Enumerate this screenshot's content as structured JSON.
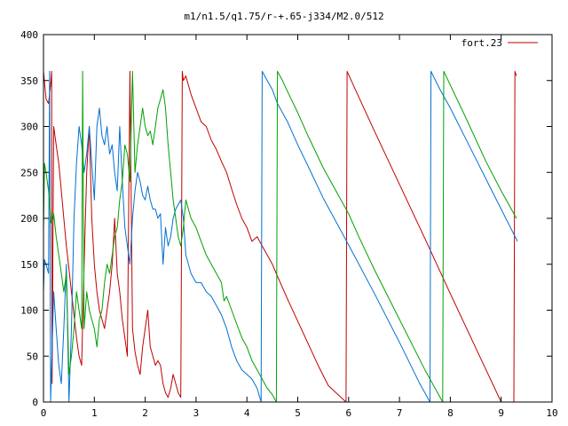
{
  "chart_data": {
    "type": "line",
    "title": "m1/n1.5/q1.75/r-+.65-j334/M2.0/512",
    "xlabel": "",
    "ylabel": "",
    "xlim": [
      0,
      10
    ],
    "ylim": [
      0,
      400
    ],
    "x_ticks": [
      0,
      1,
      2,
      3,
      4,
      5,
      6,
      7,
      8,
      9,
      10
    ],
    "y_ticks": [
      0,
      50,
      100,
      150,
      200,
      250,
      300,
      350,
      400
    ],
    "grid": false,
    "legend": {
      "position": "top-right",
      "entries": [
        "fort.23"
      ]
    },
    "series": [
      {
        "name": "fort.23",
        "color": "#c00000",
        "points": [
          [
            0.0,
            360
          ],
          [
            0.05,
            330
          ],
          [
            0.1,
            325
          ],
          [
            0.14,
            345
          ],
          [
            0.16,
            360
          ],
          [
            0.17,
            20
          ],
          [
            0.2,
            300
          ],
          [
            0.25,
            280
          ],
          [
            0.3,
            260
          ],
          [
            0.35,
            230
          ],
          [
            0.4,
            200
          ],
          [
            0.45,
            170
          ],
          [
            0.5,
            145
          ],
          [
            0.55,
            120
          ],
          [
            0.6,
            95
          ],
          [
            0.65,
            70
          ],
          [
            0.7,
            50
          ],
          [
            0.75,
            40
          ],
          [
            0.8,
            150
          ],
          [
            0.85,
            250
          ],
          [
            0.9,
            300
          ],
          [
            0.95,
            200
          ],
          [
            1.0,
            150
          ],
          [
            1.05,
            120
          ],
          [
            1.1,
            100
          ],
          [
            1.15,
            90
          ],
          [
            1.2,
            80
          ],
          [
            1.25,
            100
          ],
          [
            1.3,
            120
          ],
          [
            1.35,
            150
          ],
          [
            1.4,
            200
          ],
          [
            1.45,
            140
          ],
          [
            1.5,
            120
          ],
          [
            1.55,
            90
          ],
          [
            1.6,
            70
          ],
          [
            1.65,
            50
          ],
          [
            1.7,
            360
          ],
          [
            1.75,
            80
          ],
          [
            1.8,
            55
          ],
          [
            1.85,
            40
          ],
          [
            1.9,
            30
          ],
          [
            1.95,
            60
          ],
          [
            2.0,
            80
          ],
          [
            2.05,
            100
          ],
          [
            2.1,
            60
          ],
          [
            2.15,
            50
          ],
          [
            2.2,
            40
          ],
          [
            2.25,
            45
          ],
          [
            2.3,
            40
          ],
          [
            2.35,
            20
          ],
          [
            2.4,
            10
          ],
          [
            2.45,
            5
          ],
          [
            2.5,
            15
          ],
          [
            2.55,
            30
          ],
          [
            2.6,
            20
          ],
          [
            2.65,
            10
          ],
          [
            2.7,
            5
          ],
          [
            2.73,
            360
          ],
          [
            2.75,
            350
          ],
          [
            2.8,
            355
          ],
          [
            2.85,
            345
          ],
          [
            2.9,
            335
          ],
          [
            3.0,
            320
          ],
          [
            3.1,
            305
          ],
          [
            3.2,
            300
          ],
          [
            3.3,
            285
          ],
          [
            3.4,
            275
          ],
          [
            3.5,
            262
          ],
          [
            3.6,
            250
          ],
          [
            3.7,
            232
          ],
          [
            3.8,
            215
          ],
          [
            3.9,
            200
          ],
          [
            4.0,
            190
          ],
          [
            4.1,
            175
          ],
          [
            4.2,
            180
          ],
          [
            4.3,
            170
          ],
          [
            4.4,
            160
          ],
          [
            4.5,
            150
          ],
          [
            4.6,
            137
          ],
          [
            4.8,
            112
          ],
          [
            5.0,
            88
          ],
          [
            5.2,
            64
          ],
          [
            5.4,
            40
          ],
          [
            5.6,
            18
          ],
          [
            5.95,
            0
          ],
          [
            5.97,
            360
          ],
          [
            6.2,
            332
          ],
          [
            6.5,
            296
          ],
          [
            7.0,
            237
          ],
          [
            7.5,
            178
          ],
          [
            8.0,
            118
          ],
          [
            8.5,
            59
          ],
          [
            9.0,
            0
          ],
          [
            9.25,
            0
          ],
          [
            9.27,
            360
          ],
          [
            9.3,
            355
          ]
        ]
      },
      {
        "name": "",
        "color": "#0070d0",
        "points": [
          [
            0.0,
            120
          ],
          [
            0.02,
            155
          ],
          [
            0.05,
            150
          ],
          [
            0.1,
            140
          ],
          [
            0.12,
            360
          ],
          [
            0.14,
            0
          ],
          [
            0.2,
            120
          ],
          [
            0.25,
            80
          ],
          [
            0.3,
            40
          ],
          [
            0.35,
            20
          ],
          [
            0.4,
            80
          ],
          [
            0.45,
            150
          ],
          [
            0.5,
            0
          ],
          [
            0.55,
            80
          ],
          [
            0.6,
            200
          ],
          [
            0.65,
            260
          ],
          [
            0.7,
            300
          ],
          [
            0.75,
            280
          ],
          [
            0.8,
            250
          ],
          [
            0.85,
            270
          ],
          [
            0.9,
            300
          ],
          [
            0.95,
            260
          ],
          [
            1.0,
            220
          ],
          [
            1.05,
            300
          ],
          [
            1.1,
            320
          ],
          [
            1.15,
            290
          ],
          [
            1.2,
            280
          ],
          [
            1.25,
            300
          ],
          [
            1.3,
            270
          ],
          [
            1.35,
            280
          ],
          [
            1.4,
            250
          ],
          [
            1.45,
            230
          ],
          [
            1.5,
            300
          ],
          [
            1.55,
            240
          ],
          [
            1.6,
            190
          ],
          [
            1.65,
            170
          ],
          [
            1.7,
            150
          ],
          [
            1.75,
            200
          ],
          [
            1.8,
            230
          ],
          [
            1.85,
            250
          ],
          [
            1.9,
            240
          ],
          [
            1.95,
            225
          ],
          [
            2.0,
            220
          ],
          [
            2.05,
            235
          ],
          [
            2.1,
            220
          ],
          [
            2.15,
            210
          ],
          [
            2.2,
            210
          ],
          [
            2.25,
            200
          ],
          [
            2.3,
            205
          ],
          [
            2.35,
            150
          ],
          [
            2.4,
            190
          ],
          [
            2.45,
            170
          ],
          [
            2.5,
            180
          ],
          [
            2.55,
            200
          ],
          [
            2.6,
            210
          ],
          [
            2.65,
            215
          ],
          [
            2.7,
            220
          ],
          [
            2.75,
            200
          ],
          [
            2.8,
            160
          ],
          [
            2.9,
            140
          ],
          [
            3.0,
            130
          ],
          [
            3.1,
            130
          ],
          [
            3.2,
            120
          ],
          [
            3.3,
            115
          ],
          [
            3.4,
            105
          ],
          [
            3.5,
            95
          ],
          [
            3.6,
            80
          ],
          [
            3.7,
            60
          ],
          [
            3.8,
            45
          ],
          [
            3.9,
            35
          ],
          [
            4.0,
            30
          ],
          [
            4.1,
            25
          ],
          [
            4.2,
            15
          ],
          [
            4.28,
            0
          ],
          [
            4.3,
            360
          ],
          [
            4.4,
            350
          ],
          [
            4.5,
            340
          ],
          [
            4.6,
            325
          ],
          [
            4.8,
            305
          ],
          [
            5.0,
            280
          ],
          [
            5.2,
            257
          ],
          [
            5.5,
            222
          ],
          [
            6.0,
            171
          ],
          [
            6.5,
            119
          ],
          [
            7.0,
            65
          ],
          [
            7.4,
            20
          ],
          [
            7.6,
            0
          ],
          [
            7.62,
            360
          ],
          [
            7.8,
            340
          ],
          [
            8.0,
            320
          ],
          [
            8.4,
            276
          ],
          [
            8.8,
            232
          ],
          [
            9.32,
            175
          ]
        ]
      },
      {
        "name": "",
        "color": "#00a000",
        "points": [
          [
            0.0,
            185
          ],
          [
            0.02,
            260
          ],
          [
            0.05,
            250
          ],
          [
            0.1,
            230
          ],
          [
            0.15,
            195
          ],
          [
            0.2,
            205
          ],
          [
            0.25,
            180
          ],
          [
            0.3,
            160
          ],
          [
            0.35,
            140
          ],
          [
            0.4,
            120
          ],
          [
            0.45,
            140
          ],
          [
            0.5,
            30
          ],
          [
            0.55,
            50
          ],
          [
            0.6,
            80
          ],
          [
            0.65,
            120
          ],
          [
            0.7,
            100
          ],
          [
            0.75,
            80
          ],
          [
            0.77,
            360
          ],
          [
            0.8,
            80
          ],
          [
            0.85,
            120
          ],
          [
            0.9,
            100
          ],
          [
            0.95,
            90
          ],
          [
            1.0,
            80
          ],
          [
            1.05,
            60
          ],
          [
            1.1,
            90
          ],
          [
            1.15,
            100
          ],
          [
            1.2,
            130
          ],
          [
            1.25,
            150
          ],
          [
            1.3,
            140
          ],
          [
            1.35,
            160
          ],
          [
            1.4,
            180
          ],
          [
            1.45,
            190
          ],
          [
            1.5,
            220
          ],
          [
            1.55,
            240
          ],
          [
            1.6,
            280
          ],
          [
            1.65,
            270
          ],
          [
            1.7,
            240
          ],
          [
            1.75,
            360
          ],
          [
            1.8,
            250
          ],
          [
            1.85,
            280
          ],
          [
            1.9,
            300
          ],
          [
            1.95,
            320
          ],
          [
            2.0,
            300
          ],
          [
            2.05,
            290
          ],
          [
            2.1,
            295
          ],
          [
            2.15,
            280
          ],
          [
            2.2,
            300
          ],
          [
            2.25,
            320
          ],
          [
            2.3,
            330
          ],
          [
            2.35,
            340
          ],
          [
            2.4,
            320
          ],
          [
            2.45,
            280
          ],
          [
            2.5,
            250
          ],
          [
            2.55,
            220
          ],
          [
            2.6,
            200
          ],
          [
            2.65,
            180
          ],
          [
            2.7,
            170
          ],
          [
            2.75,
            190
          ],
          [
            2.8,
            220
          ],
          [
            2.85,
            210
          ],
          [
            2.9,
            200
          ],
          [
            3.0,
            190
          ],
          [
            3.1,
            175
          ],
          [
            3.2,
            160
          ],
          [
            3.3,
            150
          ],
          [
            3.4,
            140
          ],
          [
            3.5,
            130
          ],
          [
            3.55,
            110
          ],
          [
            3.6,
            115
          ],
          [
            3.7,
            100
          ],
          [
            3.8,
            85
          ],
          [
            3.9,
            70
          ],
          [
            4.0,
            60
          ],
          [
            4.1,
            45
          ],
          [
            4.2,
            35
          ],
          [
            4.3,
            25
          ],
          [
            4.4,
            15
          ],
          [
            4.5,
            8
          ],
          [
            4.58,
            0
          ],
          [
            4.6,
            360
          ],
          [
            4.7,
            350
          ],
          [
            4.8,
            338
          ],
          [
            5.0,
            315
          ],
          [
            5.2,
            290
          ],
          [
            5.5,
            255
          ],
          [
            5.9,
            215
          ],
          [
            6.0,
            205
          ],
          [
            6.2,
            180
          ],
          [
            6.5,
            145
          ],
          [
            7.0,
            90
          ],
          [
            7.5,
            35
          ],
          [
            7.85,
            0
          ],
          [
            7.87,
            360
          ],
          [
            8.0,
            345
          ],
          [
            8.3,
            310
          ],
          [
            8.7,
            262
          ],
          [
            9.0,
            230
          ],
          [
            9.3,
            200
          ]
        ]
      }
    ]
  }
}
